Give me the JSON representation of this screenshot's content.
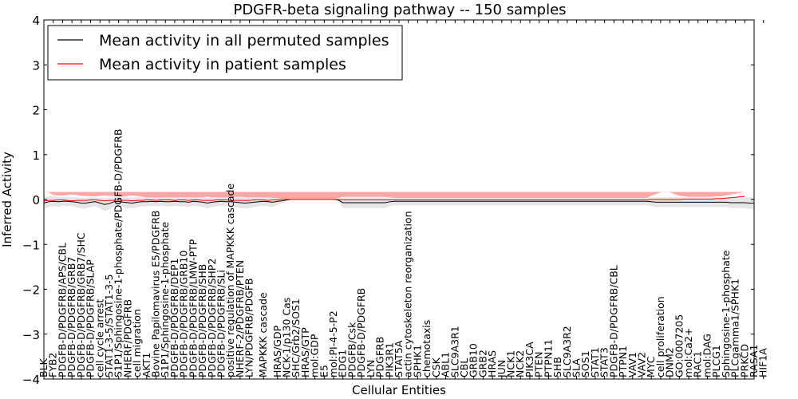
{
  "chart_data": {
    "type": "line",
    "title": "PDGFR-beta signaling pathway -- 150 samples",
    "xlabel": "Cellular Entities",
    "ylabel": "Inferred Activity",
    "ylim": [
      -4,
      4
    ],
    "yticks": [
      -4,
      -3,
      -2,
      -1,
      0,
      1,
      2,
      3,
      4
    ],
    "ytick_labels": [
      "−4",
      "−3",
      "−2",
      "−1",
      "0",
      "1",
      "2",
      "3",
      "4"
    ],
    "legend_position": "upper-left",
    "series": [
      {
        "name": "Mean activity in all permuted samples",
        "color": "#000000",
        "values": [
          -0.08,
          -0.05,
          -0.04,
          -0.05,
          -0.04,
          -0.04,
          -0.05,
          -0.06,
          -0.08,
          -0.08,
          -0.06,
          -0.05,
          -0.08,
          -0.11,
          -0.09,
          -0.05,
          -0.04,
          -0.06,
          -0.07,
          -0.08,
          -0.06,
          -0.05,
          -0.05,
          -0.04,
          -0.05,
          -0.04,
          -0.05,
          -0.05,
          -0.04,
          -0.05,
          -0.05,
          -0.06,
          -0.04,
          -0.05,
          -0.06,
          -0.08,
          -0.06,
          -0.05,
          -0.04,
          -0.05,
          -0.05,
          -0.06,
          -0.07,
          -0.08,
          -0.07,
          -0.06,
          -0.05,
          -0.04,
          -0.05,
          -0.06,
          -0.04,
          -0.03,
          -0.01,
          0.0,
          0.0,
          0.0,
          0.0,
          0.0,
          0.0,
          0.0,
          0.0,
          0.0,
          0.0,
          -0.01,
          -0.07,
          -0.07,
          -0.07,
          -0.07,
          -0.07,
          -0.07,
          -0.07,
          -0.07,
          -0.07,
          -0.07,
          -0.05,
          -0.04,
          -0.04,
          -0.04,
          -0.04,
          -0.04,
          -0.04,
          -0.04,
          -0.04,
          -0.04,
          -0.04,
          -0.04,
          -0.04,
          -0.04,
          -0.04,
          -0.04,
          -0.04,
          -0.04,
          -0.04,
          -0.04,
          -0.04,
          -0.04,
          -0.04,
          -0.04,
          -0.04,
          -0.04,
          -0.04,
          -0.04,
          -0.04,
          -0.04,
          -0.04,
          -0.04,
          -0.04,
          -0.04,
          -0.04,
          -0.04,
          -0.04,
          -0.04,
          -0.04,
          -0.04,
          -0.04,
          -0.04,
          -0.04,
          -0.04,
          -0.04,
          -0.04,
          -0.04,
          -0.04,
          -0.04,
          -0.04,
          -0.04,
          -0.04,
          -0.04,
          -0.04,
          -0.04,
          -0.04,
          -0.05,
          -0.06,
          -0.06,
          -0.06,
          -0.06,
          -0.06,
          -0.06,
          -0.06,
          -0.06,
          -0.06,
          -0.06,
          -0.06,
          -0.06,
          -0.06,
          -0.06,
          -0.06,
          -0.06,
          -0.07,
          -0.07,
          -0.07,
          -0.07,
          -0.08,
          -0.08
        ],
        "band": [
          0.14,
          0.12,
          0.11,
          0.11,
          0.1,
          0.1,
          0.1,
          0.11,
          0.12,
          0.12,
          0.11,
          0.1,
          0.12,
          0.15,
          0.13,
          0.1,
          0.1,
          0.11,
          0.12,
          0.12,
          0.11,
          0.1,
          0.1,
          0.1,
          0.1,
          0.1,
          0.1,
          0.1,
          0.1,
          0.1,
          0.1,
          0.11,
          0.1,
          0.1,
          0.11,
          0.12,
          0.11,
          0.1,
          0.1,
          0.1,
          0.1,
          0.11,
          0.12,
          0.12,
          0.12,
          0.11,
          0.1,
          0.1,
          0.1,
          0.11,
          0.08,
          0.05,
          0.02,
          0.01,
          0.01,
          0.01,
          0.01,
          0.01,
          0.01,
          0.01,
          0.01,
          0.01,
          0.01,
          0.03,
          0.12,
          0.12,
          0.12,
          0.12,
          0.12,
          0.12,
          0.12,
          0.12,
          0.12,
          0.12,
          0.1,
          0.09,
          0.09,
          0.09,
          0.09,
          0.09,
          0.09,
          0.09,
          0.09,
          0.09,
          0.09,
          0.09,
          0.09,
          0.09,
          0.09,
          0.09,
          0.09,
          0.09,
          0.09,
          0.09,
          0.09,
          0.09,
          0.09,
          0.09,
          0.09,
          0.09,
          0.09,
          0.09,
          0.09,
          0.09,
          0.09,
          0.09,
          0.09,
          0.09,
          0.09,
          0.09,
          0.09,
          0.09,
          0.09,
          0.09,
          0.09,
          0.09,
          0.09,
          0.09,
          0.09,
          0.09,
          0.09,
          0.09,
          0.09,
          0.09,
          0.09,
          0.09,
          0.09,
          0.09,
          0.09,
          0.09,
          0.1,
          0.11,
          0.11,
          0.11,
          0.11,
          0.11,
          0.11,
          0.11,
          0.11,
          0.11,
          0.11,
          0.11,
          0.11,
          0.11,
          0.11,
          0.11,
          0.11,
          0.12,
          0.12,
          0.12,
          0.12,
          0.13,
          0.13
        ]
      },
      {
        "name": "Mean activity in patient samples",
        "color": "#ff0000",
        "values": [
          -0.03,
          -0.02,
          -0.02,
          -0.01,
          -0.01,
          -0.02,
          -0.03,
          -0.02,
          -0.02,
          -0.02,
          -0.01,
          -0.01,
          -0.02,
          -0.03,
          -0.02,
          -0.02,
          -0.01,
          -0.02,
          -0.02,
          -0.03,
          -0.02,
          -0.02,
          -0.01,
          -0.01,
          -0.02,
          -0.01,
          -0.01,
          -0.01,
          -0.02,
          -0.01,
          -0.01,
          -0.02,
          -0.01,
          -0.01,
          -0.02,
          -0.02,
          -0.02,
          -0.01,
          -0.01,
          -0.01,
          -0.02,
          -0.02,
          -0.02,
          -0.02,
          -0.02,
          -0.01,
          -0.01,
          -0.01,
          -0.02,
          -0.01,
          -0.01,
          0.0,
          0.0,
          0.0,
          0.0,
          0.0,
          0.0,
          0.0,
          0.0,
          0.0,
          0.0,
          0.0,
          0.0,
          0.0,
          -0.01,
          -0.01,
          -0.01,
          -0.01,
          -0.01,
          -0.01,
          -0.01,
          -0.01,
          -0.01,
          -0.01,
          -0.01,
          -0.01,
          -0.01,
          -0.01,
          -0.01,
          -0.01,
          -0.01,
          -0.01,
          -0.01,
          -0.01,
          -0.01,
          -0.01,
          -0.01,
          -0.01,
          -0.01,
          -0.01,
          -0.01,
          -0.01,
          -0.01,
          -0.01,
          -0.01,
          -0.01,
          -0.01,
          -0.01,
          -0.01,
          -0.01,
          -0.01,
          -0.01,
          -0.01,
          -0.01,
          -0.01,
          -0.01,
          -0.01,
          -0.01,
          -0.01,
          -0.01,
          -0.01,
          -0.01,
          -0.01,
          -0.01,
          -0.01,
          -0.01,
          -0.01,
          -0.01,
          -0.01,
          -0.01,
          -0.01,
          -0.01,
          -0.01,
          -0.01,
          -0.01,
          -0.01,
          -0.01,
          -0.01,
          -0.01,
          -0.01,
          0.0,
          0.0,
          0.0,
          0.0,
          0.0,
          0.0,
          0.0,
          0.01,
          0.01,
          0.01,
          0.01,
          0.01,
          0.01,
          0.01,
          0.02,
          0.02,
          0.03,
          0.04,
          0.05,
          0.06,
          0.07
        ],
        "band": [
          0.2,
          0.18,
          0.12,
          0.1,
          0.1,
          0.12,
          0.14,
          0.12,
          0.1,
          0.1,
          0.08,
          0.08,
          0.1,
          0.12,
          0.1,
          0.1,
          0.08,
          0.08,
          0.1,
          0.12,
          0.1,
          0.08,
          0.06,
          0.06,
          0.07,
          0.06,
          0.06,
          0.06,
          0.07,
          0.06,
          0.06,
          0.07,
          0.06,
          0.06,
          0.07,
          0.08,
          0.07,
          0.06,
          0.06,
          0.06,
          0.07,
          0.08,
          0.08,
          0.07,
          0.07,
          0.06,
          0.06,
          0.06,
          0.07,
          0.05,
          0.04,
          0.02,
          0.01,
          0.01,
          0.01,
          0.01,
          0.01,
          0.01,
          0.01,
          0.01,
          0.01,
          0.01,
          0.01,
          0.03,
          0.07,
          0.07,
          0.07,
          0.07,
          0.07,
          0.07,
          0.07,
          0.07,
          0.07,
          0.07,
          0.06,
          0.05,
          0.05,
          0.05,
          0.05,
          0.05,
          0.05,
          0.05,
          0.05,
          0.05,
          0.05,
          0.05,
          0.05,
          0.05,
          0.05,
          0.05,
          0.05,
          0.05,
          0.05,
          0.05,
          0.05,
          0.05,
          0.05,
          0.05,
          0.05,
          0.05,
          0.05,
          0.05,
          0.05,
          0.05,
          0.05,
          0.05,
          0.05,
          0.05,
          0.05,
          0.05,
          0.05,
          0.05,
          0.05,
          0.05,
          0.05,
          0.05,
          0.05,
          0.05,
          0.05,
          0.05,
          0.05,
          0.05,
          0.05,
          0.05,
          0.05,
          0.05,
          0.05,
          0.05,
          0.05,
          0.05,
          0.08,
          0.12,
          0.16,
          0.18,
          0.16,
          0.12,
          0.08,
          0.06,
          0.05,
          0.05,
          0.05,
          0.05,
          0.05,
          0.05,
          0.05,
          0.05,
          0.06,
          0.07,
          0.08,
          0.09,
          0.1
        ]
      }
    ],
    "xticks": [
      {
        "i": 0,
        "label": "BLK"
      },
      {
        "i": 2,
        "label": "FYB2"
      },
      {
        "i": 4,
        "label": "PDGFB-D/PDGFRB/APS/CBL"
      },
      {
        "i": 6,
        "label": "PDGFB-D/PDGFRB/GRB7"
      },
      {
        "i": 8,
        "label": "PDGFB-D/PDGFRB/GRB7/SHC"
      },
      {
        "i": 10,
        "label": "PDGFB-D/PDGFRB/SLAP"
      },
      {
        "i": 12,
        "label": "cell cycle arrest"
      },
      {
        "i": 14,
        "label": "STAT1-3-5/STAT1-3-5"
      },
      {
        "i": 16,
        "label": "S1P1/Sphingosine-1-phosphate/PDGFB-D/PDGFRB"
      },
      {
        "i": 18,
        "label": "NHERF/PDGFRB"
      },
      {
        "i": 20,
        "label": "cell migration"
      },
      {
        "i": 22,
        "label": "AKT1"
      },
      {
        "i": 24,
        "label": "Bovine Papilomavirus E5/PDGFRB"
      },
      {
        "i": 26,
        "label": "S1P1/Sphingosine-1-phosphate"
      },
      {
        "i": 28,
        "label": "PDGFB-D/PDGFRB/DEP1"
      },
      {
        "i": 30,
        "label": "PDGFB-D/PDGFRB/GRB10"
      },
      {
        "i": 32,
        "label": "PDGFB-D/PDGFRB/LMW-PTP"
      },
      {
        "i": 34,
        "label": "PDGFB-D/PDGFRB/SHB"
      },
      {
        "i": 36,
        "label": "PDGFB-D/PDGFRB/SHP2"
      },
      {
        "i": 38,
        "label": "PDGFB-D/PDGFRB/SLi"
      },
      {
        "i": 40,
        "label": "positive regulation of MAPKKK cascade"
      },
      {
        "i": 42,
        "label": "NHERF-2/PDGFRB/PTEN"
      },
      {
        "i": 44,
        "label": "LYN/PDGFRB/PDGFB"
      },
      {
        "i": 47,
        "label": "MAPKKK cascade"
      },
      {
        "i": 50,
        "label": "HRAS/GDP"
      },
      {
        "i": 52,
        "label": "NCK-1/p130 Cas"
      },
      {
        "i": 54,
        "label": "SHC/Grb2/SOS1"
      },
      {
        "i": 56,
        "label": "HRAS/GTP"
      },
      {
        "i": 58,
        "label": "mol:GDP"
      },
      {
        "i": 60,
        "label": "E5"
      },
      {
        "i": 62,
        "label": "mol:PI-4-5-P2"
      },
      {
        "i": 64,
        "label": "EDG1"
      },
      {
        "i": 66,
        "label": "PDGFB/Csk"
      },
      {
        "i": 68,
        "label": "PDGFB-D/PDGFRB"
      },
      {
        "i": 70,
        "label": "LYN"
      },
      {
        "i": 72,
        "label": "PDGFRB"
      },
      {
        "i": 74,
        "label": "PIK3R1"
      },
      {
        "i": 76,
        "label": "STAT5A"
      },
      {
        "i": 78,
        "label": "actin cytoskeleton reorganization"
      },
      {
        "i": 80,
        "label": "SPHK1"
      },
      {
        "i": 82,
        "label": "chemotaxis"
      },
      {
        "i": 84,
        "label": "CSK"
      },
      {
        "i": 86,
        "label": "ABL1"
      },
      {
        "i": 88,
        "label": "SLC9A3R1"
      },
      {
        "i": 90,
        "label": "CBL"
      },
      {
        "i": 92,
        "label": "GRB10"
      },
      {
        "i": 94,
        "label": "GRB2"
      },
      {
        "i": 96,
        "label": "HRAS"
      },
      {
        "i": 98,
        "label": "JUN"
      },
      {
        "i": 100,
        "label": "NCK1"
      },
      {
        "i": 102,
        "label": "NCK2"
      },
      {
        "i": 104,
        "label": "PIK3CA"
      },
      {
        "i": 106,
        "label": "PTEN"
      },
      {
        "i": 108,
        "label": "PTPN11"
      },
      {
        "i": 110,
        "label": "SHB"
      },
      {
        "i": 112,
        "label": "SLC9A3R2"
      },
      {
        "i": 114,
        "label": "SLA"
      },
      {
        "i": 116,
        "label": "SOS1"
      },
      {
        "i": 118,
        "label": "STAT1"
      },
      {
        "i": 120,
        "label": "STAT3"
      },
      {
        "i": 122,
        "label": "PDGFB-D/PDGFRB/CBL"
      },
      {
        "i": 124,
        "label": "PTPN1"
      },
      {
        "i": 126,
        "label": "VAV1"
      },
      {
        "i": 128,
        "label": "VAV2"
      },
      {
        "i": 130,
        "label": "MYC"
      },
      {
        "i": 132,
        "label": "cell proliferation"
      },
      {
        "i": 134,
        "label": "DNM2"
      },
      {
        "i": 136,
        "label": "GO:0007205"
      },
      {
        "i": 138,
        "label": "mol:Ca2+"
      },
      {
        "i": 140,
        "label": "RAC1"
      },
      {
        "i": 142,
        "label": "mol:DAG"
      },
      {
        "i": 144,
        "label": "PLCG1"
      },
      {
        "i": 146,
        "label": "Sphingosine-1-phosphate"
      },
      {
        "i": 148,
        "label": "PLCgamma1/SPHK1"
      },
      {
        "i": 150,
        "label": "PRKCD"
      },
      {
        "i": 152,
        "label": "RASA1"
      },
      {
        "i": 154,
        "label": "HIF1A"
      }
    ]
  },
  "legend": {
    "permuted": "Mean activity in all permuted samples",
    "patient": "Mean activity in patient samples"
  }
}
